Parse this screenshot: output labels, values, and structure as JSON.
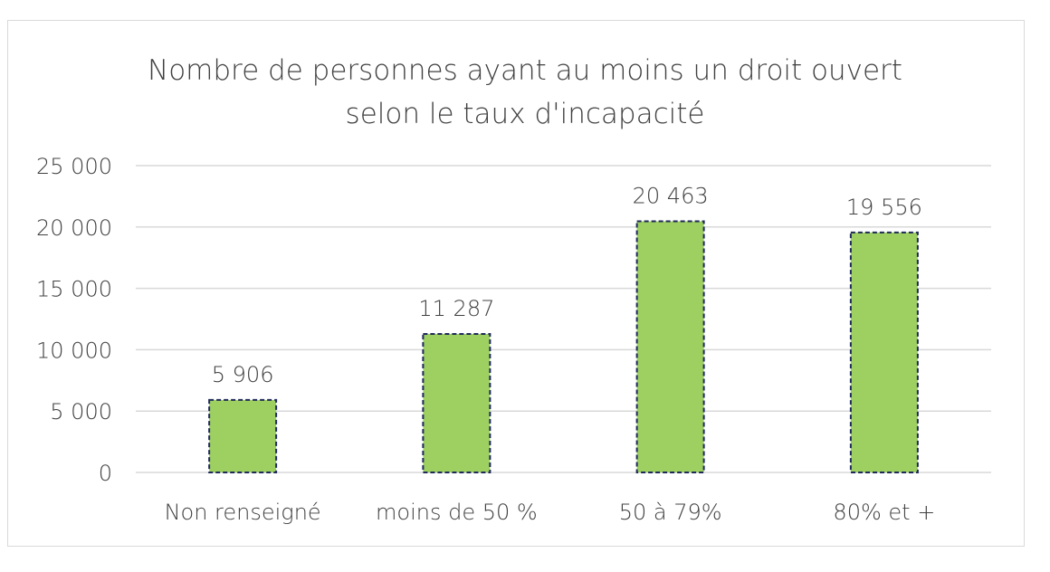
{
  "chart_data": {
    "type": "bar",
    "title_line1": "Nombre de personnes ayant au moins un droit ouvert",
    "title_line2": "selon le taux d'incapacité",
    "categories": [
      "Non renseigné",
      "moins de  50 %",
      "50 à 79%",
      "80% et +"
    ],
    "values": [
      5906,
      11287,
      20463,
      19556
    ],
    "data_labels": [
      "5 906",
      "11 287",
      "20 463",
      "19 556"
    ],
    "yticks": [
      0,
      5000,
      10000,
      15000,
      20000,
      25000
    ],
    "ytick_labels": [
      "0",
      "5 000",
      "10 000",
      "15 000",
      "20 000",
      "25 000"
    ],
    "ylim": [
      0,
      25000
    ],
    "xlabel": "",
    "ylabel": "",
    "grid": true,
    "colors": {
      "bar": "#9dcf61",
      "border": "#1f2a5a",
      "grid": "#d9d9d9",
      "text": "#404040"
    }
  }
}
